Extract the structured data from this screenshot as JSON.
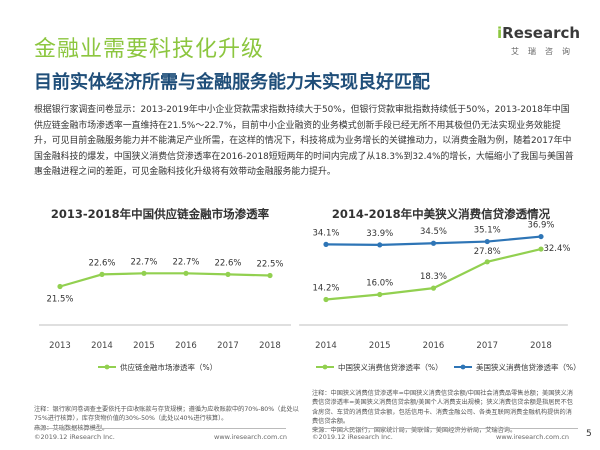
{
  "header": {
    "title": "金融业需要科技化升级",
    "subtitle": "目前实体经济所需与金融服务能力未实现良好匹配",
    "logo_text": "Research",
    "logo_i": "i",
    "logo_sub": "艾瑞咨询"
  },
  "body": {
    "paragraph": "根据银行家调查问卷显示：2013-2019年中小企业贷款需求指数持续大于50%，但银行贷款审批指数持续低于50%，2013-2018年中国供应链金融市场渗透率一直维持在21.5%～22.7%，目前中小企业融资的业务模式创新手段已经无所不用其极但仍无法实现业务效能提升，可见目前金融服务能力并不能满足产业所需，在这样的情况下，科技将成为业务增长的关键推动力，以消费金融为例，随着2017年中国金融科技的爆发，中国狭义消费信贷渗透率在2016-2018短短两年的时间内完成了从18.3%到32.4%的增长，大幅缩小了我国与美国普惠金融进程之间的差距，可见金融科技化升级将有效带动金融服务能力提升。"
  },
  "chart_data": [
    {
      "type": "line",
      "title": "2013-2018年中国供应链金融市场渗透率",
      "x": [
        "2013",
        "2014",
        "2015",
        "2016",
        "2017",
        "2018"
      ],
      "series": [
        {
          "name": "供应链金融市场渗透率（%）",
          "values": [
            21.5,
            22.6,
            22.7,
            22.7,
            22.6,
            22.5
          ],
          "labels": [
            "21.5%",
            "22.6%",
            "22.7%",
            "22.7%",
            "22.6%",
            "22.5%"
          ],
          "color": "#92d050"
        }
      ],
      "legend": "bottom",
      "grid": false
    },
    {
      "type": "line",
      "title": "2014-2018年中美狭义消费信贷渗透情况",
      "x": [
        "2014",
        "2015",
        "2016",
        "2017",
        "2018"
      ],
      "series": [
        {
          "name": "中国狭义消费信贷渗透率（%）",
          "values": [
            14.2,
            16.0,
            18.3,
            27.8,
            32.4
          ],
          "labels": [
            "14.2%",
            "16.0%",
            "18.3%",
            "27.8%",
            "32.4%"
          ],
          "color": "#92d050"
        },
        {
          "name": "美国狭义消费信贷渗透率（%）",
          "values": [
            34.1,
            33.9,
            34.5,
            35.1,
            36.9
          ],
          "labels": [
            "34.1%",
            "33.9%",
            "34.5%",
            "35.1%",
            "36.9%"
          ],
          "color": "#2e75b6"
        }
      ],
      "legend": "bottom",
      "grid": false
    }
  ],
  "notes": {
    "left": "注释：银行家问卷调查主要依托于应收账款与存货规模；遵循为应收账款中的70%-80%（此处以75%进行核算），库存货物价值的30%-50%（此处以40%进行核算）。\n来源：艾瑞数据核算模型。",
    "right": "注释：中国狭义消费信贷渗透率=中国狭义消费信贷余额/中国社会消费品零售总额；美国狭义消费信贷渗透率=美国狭义消费信贷余额/美国个人消费支出规模；狭义消费信贷余额是指居民不包含房贷、车贷的消费信贷余额，包括信用卡、消费金融公司、各类互联网消费金融机构提供的消费信贷余额。\n来源：中国人民银行，国家统计局，美联储，美国经济分析局，艾瑞咨询。"
  },
  "footer": {
    "left_copyright": "©2019.12 iResearch Inc.",
    "left_site": "www.iresearch.com.cn",
    "right_copyright": "©2019.12 iResearch Inc.",
    "right_site": "www.iresearch.com.cn",
    "page_number": "5"
  }
}
